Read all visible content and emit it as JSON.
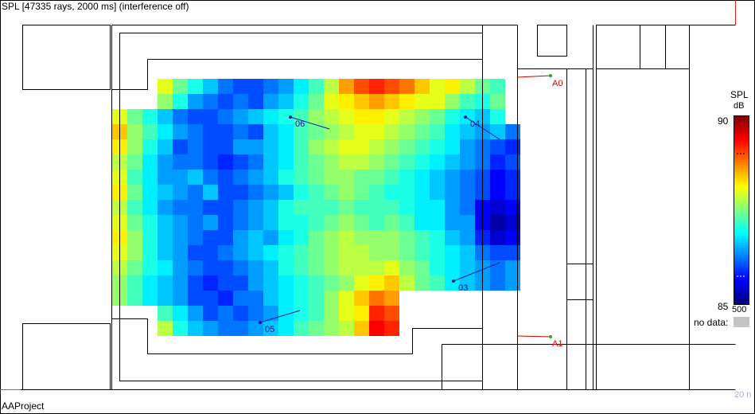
{
  "window": {
    "title": "SPL [47335 rays, 2000 ms] (interference off)",
    "footer": "AAProject",
    "scale_label": "20 n"
  },
  "legend": {
    "title": "SPL",
    "unit": "dB",
    "max_label": "90",
    "min_label": "85",
    "frequency_label": "500",
    "no_data_label": "no data:",
    "no_data_color": "#c4c4c4"
  },
  "receivers": [
    {
      "label": "06"
    },
    {
      "label": "04"
    },
    {
      "label": "03"
    },
    {
      "label": "05"
    }
  ],
  "sources": [
    {
      "label": "A0"
    },
    {
      "label": "A1"
    }
  ],
  "chart_data": {
    "type": "heatmap",
    "colorscale": "jet",
    "value_range": [
      85,
      90
    ],
    "unit": "dB",
    "grid_cols": 27,
    "grid_rows": 19,
    "grid": [
      [
        null,
        null,
        null,
        null,
        null,
        null,
        null,
        null,
        null,
        null,
        null,
        null,
        null,
        null,
        null,
        null,
        null,
        null,
        null,
        null,
        null,
        null,
        null,
        null,
        null,
        null,
        null
      ],
      [
        null,
        null,
        null,
        88.0,
        87.4,
        87.0,
        86.6,
        86.2,
        86.0,
        86.0,
        86.2,
        86.4,
        86.8,
        87.2,
        87.8,
        88.6,
        89.0,
        89.2,
        89.0,
        88.8,
        88.4,
        88.0,
        88.2,
        87.8,
        87.4,
        87.2,
        null
      ],
      [
        null,
        null,
        null,
        87.6,
        87.0,
        86.4,
        86.2,
        86.0,
        86.2,
        86.0,
        86.4,
        86.6,
        87.0,
        87.4,
        88.0,
        88.2,
        88.4,
        88.6,
        88.4,
        88.2,
        88.0,
        88.0,
        87.6,
        87.2,
        87.0,
        87.4,
        null
      ],
      [
        88.0,
        87.4,
        87.0,
        86.6,
        86.2,
        86.0,
        86.0,
        86.2,
        86.4,
        86.6,
        86.8,
        87.0,
        87.2,
        87.6,
        87.8,
        88.0,
        88.2,
        88.2,
        88.0,
        87.8,
        87.6,
        87.4,
        87.0,
        86.8,
        86.6,
        87.0,
        null
      ],
      [
        88.4,
        87.6,
        87.2,
        86.8,
        86.4,
        86.2,
        86.0,
        86.0,
        86.2,
        86.0,
        86.6,
        86.8,
        87.2,
        87.4,
        87.6,
        87.8,
        88.0,
        88.0,
        87.8,
        87.6,
        87.4,
        87.2,
        86.8,
        86.6,
        86.4,
        86.6,
        86.2
      ],
      [
        88.2,
        87.6,
        87.0,
        86.6,
        86.0,
        86.2,
        86.0,
        86.0,
        86.4,
        86.4,
        86.6,
        86.8,
        87.2,
        87.6,
        87.8,
        88.0,
        88.0,
        87.8,
        87.6,
        87.4,
        87.2,
        87.0,
        86.8,
        86.4,
        86.2,
        86.0,
        85.8
      ],
      [
        87.8,
        87.4,
        86.8,
        86.4,
        86.2,
        86.2,
        86.0,
        85.8,
        86.0,
        86.2,
        86.6,
        86.8,
        87.2,
        87.4,
        87.6,
        87.8,
        87.8,
        87.6,
        87.4,
        87.2,
        87.0,
        86.8,
        86.6,
        86.4,
        86.2,
        85.8,
        86.0
      ],
      [
        88.0,
        87.2,
        86.8,
        86.4,
        86.4,
        86.6,
        86.2,
        86.0,
        86.2,
        86.4,
        86.6,
        87.0,
        87.2,
        87.4,
        87.6,
        87.6,
        87.4,
        87.4,
        87.2,
        87.0,
        86.8,
        86.6,
        86.4,
        86.2,
        86.0,
        85.6,
        85.8
      ],
      [
        88.2,
        87.4,
        86.8,
        86.6,
        86.4,
        86.2,
        86.6,
        86.0,
        86.0,
        86.2,
        86.4,
        86.6,
        87.0,
        87.2,
        87.4,
        87.6,
        87.4,
        87.2,
        87.0,
        87.0,
        86.8,
        86.6,
        86.4,
        86.2,
        86.0,
        85.6,
        85.8
      ],
      [
        87.8,
        87.2,
        86.8,
        86.4,
        86.2,
        86.2,
        86.0,
        86.0,
        86.2,
        86.4,
        86.6,
        87.0,
        87.2,
        87.2,
        87.2,
        87.4,
        87.2,
        87.2,
        87.2,
        87.0,
        86.8,
        86.8,
        86.4,
        86.2,
        85.6,
        85.4,
        85.6
      ],
      [
        88.0,
        87.4,
        87.0,
        86.6,
        86.4,
        86.2,
        86.4,
        86.0,
        86.2,
        86.4,
        86.6,
        87.0,
        87.0,
        87.2,
        87.4,
        87.6,
        87.4,
        87.2,
        87.4,
        87.2,
        86.8,
        86.8,
        86.4,
        86.4,
        85.6,
        85.2,
        85.4
      ],
      [
        88.2,
        87.6,
        87.0,
        86.6,
        86.4,
        86.2,
        86.0,
        86.0,
        86.4,
        86.6,
        86.4,
        86.8,
        87.0,
        87.4,
        87.6,
        87.8,
        87.6,
        87.6,
        87.6,
        87.4,
        87.2,
        87.0,
        86.6,
        86.4,
        85.8,
        85.4,
        85.6
      ],
      [
        88.0,
        87.6,
        87.0,
        86.6,
        86.4,
        86.0,
        86.0,
        86.2,
        86.4,
        86.6,
        86.8,
        87.0,
        87.2,
        87.4,
        87.6,
        87.8,
        87.8,
        87.6,
        87.6,
        87.4,
        87.2,
        87.0,
        86.8,
        86.6,
        86.2,
        86.0,
        86.0
      ],
      [
        87.8,
        87.4,
        87.0,
        86.8,
        86.4,
        86.2,
        86.0,
        86.0,
        86.2,
        86.4,
        86.6,
        87.0,
        87.2,
        87.4,
        87.6,
        87.8,
        87.8,
        87.8,
        88.0,
        87.6,
        87.4,
        87.0,
        86.8,
        86.6,
        86.4,
        86.2,
        86.4
      ],
      [
        87.6,
        87.2,
        86.8,
        86.6,
        86.4,
        86.0,
        85.8,
        86.0,
        86.0,
        86.4,
        86.6,
        86.8,
        87.0,
        87.2,
        87.4,
        87.6,
        88.0,
        88.2,
        88.4,
        87.8,
        87.4,
        87.2,
        86.8,
        86.6,
        86.4,
        86.2,
        86.4
      ],
      [
        87.6,
        87.2,
        86.8,
        86.6,
        86.4,
        86.0,
        86.0,
        85.8,
        86.2,
        86.2,
        86.6,
        86.8,
        87.0,
        87.2,
        87.6,
        88.0,
        88.4,
        88.8,
        88.6,
        null,
        null,
        null,
        null,
        null,
        null,
        null,
        null
      ],
      [
        null,
        null,
        null,
        87.2,
        86.8,
        86.4,
        86.0,
        86.2,
        86.0,
        86.2,
        86.4,
        86.8,
        87.0,
        87.2,
        87.6,
        88.0,
        88.2,
        89.2,
        89.0,
        null,
        null,
        null,
        null,
        null,
        null,
        null,
        null
      ],
      [
        null,
        null,
        null,
        87.8,
        87.0,
        86.6,
        86.4,
        86.2,
        86.2,
        86.4,
        86.6,
        86.8,
        87.2,
        87.4,
        87.6,
        87.8,
        88.4,
        89.4,
        89.2,
        null,
        null,
        null,
        null,
        null,
        null,
        null,
        null
      ],
      [
        null,
        null,
        null,
        null,
        null,
        null,
        null,
        null,
        null,
        null,
        null,
        null,
        null,
        null,
        null,
        null,
        null,
        null,
        null,
        null,
        null,
        null,
        null,
        null,
        null,
        null,
        null
      ]
    ]
  }
}
